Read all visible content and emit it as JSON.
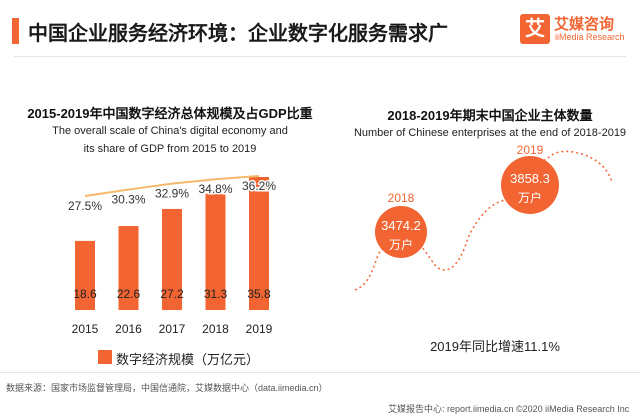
{
  "header": {
    "title": "中国企业服务经济环境：企业数字化服务需求广",
    "logo_char": "艾",
    "logo_cn": "艾媒咨询",
    "logo_en": "iiMedia Research"
  },
  "left_chart": {
    "title": "2015-2019年中国数字经济总体规模及占GDP比重",
    "subtitle_line1": "The overall scale of China's digital economy and",
    "subtitle_line2": "its share of GDP from 2015 to 2019",
    "legend_label": "数字经济规模（万亿元）"
  },
  "right_chart": {
    "title": "2018-2019年期末中国企业主体数量",
    "subtitle": "Number of Chinese enterprises at the end of 2018-2019",
    "growth_text": "2019年同比增速11.1%"
  },
  "chart_data": [
    {
      "type": "bar",
      "categories": [
        "2015",
        "2016",
        "2017",
        "2018",
        "2019"
      ],
      "series": [
        {
          "name": "数字经济规模（万亿元）",
          "values": [
            18.6,
            22.6,
            27.2,
            31.3,
            35.8
          ],
          "labels": [
            "18.6",
            "22.6",
            "27.2",
            "31.3",
            "35.8"
          ]
        },
        {
          "values": [
            27.5,
            30.3,
            32.9,
            34.8,
            36.2
          ],
          "labels": [
            "27.5%",
            "30.3%",
            "32.9%",
            "34.8%",
            "36.2%"
          ]
        }
      ],
      "colors": {
        "bar": "#f26532",
        "line": "#f5b96a",
        "bar_label": "#222222",
        "pct_label": "#333333"
      }
    },
    {
      "type": "line",
      "categories": [
        "2018",
        "2019"
      ],
      "values": [
        3474.2,
        3858.3
      ],
      "labels": [
        "3474.2",
        "3858.3"
      ],
      "unit": "万户",
      "colors": {
        "circle": "#f26532",
        "curve": "#f26532",
        "year": "#f26532",
        "text": "#ffffff"
      }
    }
  ],
  "footer": {
    "source": "数据来源：国家市场监督管理局，中国信通院，艾媒数据中心（data.iimedia.cn）",
    "right": "艾媒报告中心: report.iimedia.cn ©2020 iiMedia Research Inc"
  }
}
